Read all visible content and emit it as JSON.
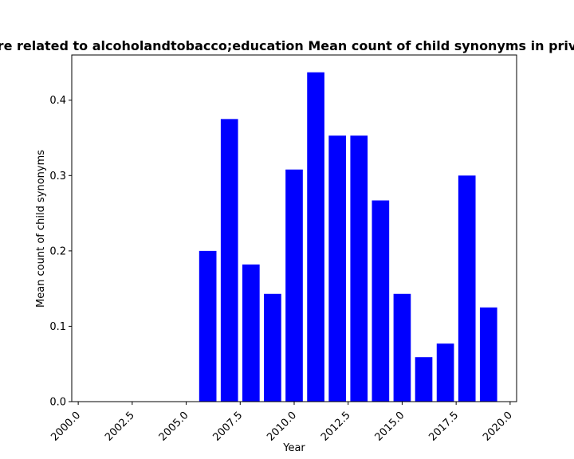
{
  "chart_data": {
    "type": "bar",
    "title": "re related to alcoholandtobacco;education Mean count of child synonyms in priv",
    "xlabel": "Year",
    "ylabel": "Mean count of child synonyms",
    "x": [
      2006,
      2007,
      2008,
      2009,
      2010,
      2011,
      2012,
      2013,
      2014,
      2015,
      2016,
      2017,
      2018,
      2019
    ],
    "values": [
      0.2,
      0.375,
      0.182,
      0.143,
      0.308,
      0.437,
      0.353,
      0.353,
      0.267,
      0.143,
      0.059,
      0.077,
      0.3,
      0.125
    ],
    "xlim": [
      1999.7,
      2020.3
    ],
    "ylim": [
      0,
      0.46
    ],
    "xticks": [
      2000.0,
      2002.5,
      2005.0,
      2007.5,
      2010.0,
      2012.5,
      2015.0,
      2017.5,
      2020.0
    ],
    "xtick_labels": [
      "2000.0",
      "2002.5",
      "2005.0",
      "2007.5",
      "2010.0",
      "2012.5",
      "2015.0",
      "2017.5",
      "2020.0"
    ],
    "yticks": [
      0.0,
      0.1,
      0.2,
      0.3,
      0.4
    ],
    "ytick_labels": [
      "0.0",
      "0.1",
      "0.2",
      "0.3",
      "0.4"
    ],
    "bar_color": "#0000ff",
    "grid": false,
    "legend": "none"
  }
}
